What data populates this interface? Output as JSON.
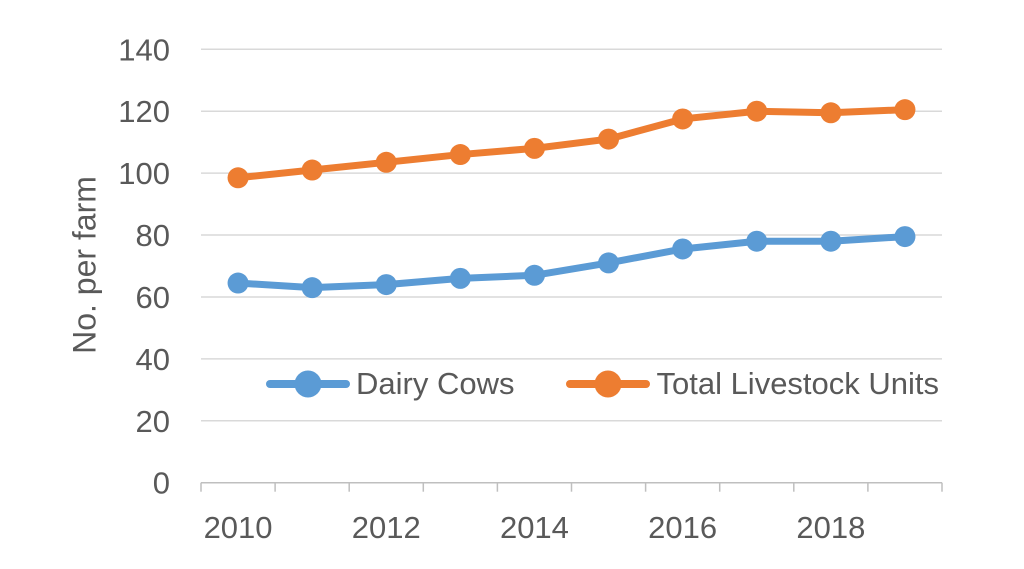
{
  "chart_data": {
    "type": "line",
    "title": "",
    "xlabel": "",
    "ylabel": "No. per farm",
    "x": [
      2010,
      2011,
      2012,
      2013,
      2014,
      2015,
      2016,
      2017,
      2018,
      2019
    ],
    "x_tick_labels": [
      "2010",
      "2012",
      "2014",
      "2016",
      "2018"
    ],
    "y_ticks": [
      0,
      20,
      40,
      60,
      80,
      100,
      120,
      140
    ],
    "ylim": [
      0,
      140
    ],
    "grid": "horizontal",
    "legend_position": "inside bottom",
    "series": [
      {
        "name": "Dairy Cows",
        "color": "#5B9BD5",
        "values": [
          64.5,
          63,
          64,
          66,
          67,
          71,
          75.5,
          78,
          78,
          79.5
        ]
      },
      {
        "name": "Total Livestock Units",
        "color": "#ED7D31",
        "values": [
          98.5,
          101,
          103.5,
          106,
          108,
          111,
          117.5,
          120,
          119.5,
          120.5
        ]
      }
    ]
  },
  "colors": {
    "text": "#595959",
    "gridline": "#D9D9D9",
    "axis": "#BFBFBF",
    "background": "#FFFFFF"
  }
}
